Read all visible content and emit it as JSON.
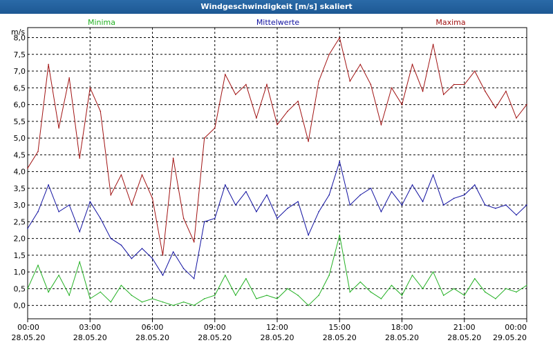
{
  "window": {
    "title": "Windgeschwindigkeit [m/s] skaliert"
  },
  "colors": {
    "min": "#22b022",
    "mean": "#1010a0",
    "max": "#a01010",
    "grid": "#000000",
    "frame": "#3b6ea5"
  },
  "chart_data": {
    "type": "line",
    "title": "Windgeschwindigkeit [m/s] skaliert",
    "ylabel": "m/s",
    "ylim": [
      -0.4,
      8.3
    ],
    "yticks": [
      0,
      0.5,
      1,
      1.5,
      2,
      2.5,
      3,
      3.5,
      4,
      4.5,
      5,
      5.5,
      6,
      6.5,
      7,
      7.5,
      8
    ],
    "ytick_labels": [
      "0,0",
      "0,5",
      "1,0",
      "1,5",
      "2,0",
      "2,5",
      "3,0",
      "3,5",
      "4,0",
      "4,5",
      "5,0",
      "5,5",
      "6,0",
      "6,5",
      "7,0",
      "7,5",
      "8,0"
    ],
    "xlim": [
      0,
      24
    ],
    "xticks": [
      {
        "h": 0,
        "time": "00:00",
        "date": "28.05.20"
      },
      {
        "h": 3,
        "time": "03:00",
        "date": "28.05.20"
      },
      {
        "h": 6,
        "time": "06:00",
        "date": "28.05.20"
      },
      {
        "h": 9,
        "time": "09:00",
        "date": "28.05.20"
      },
      {
        "h": 12,
        "time": "12:00",
        "date": "28.05.20"
      },
      {
        "h": 15,
        "time": "15:00",
        "date": "28.05.20"
      },
      {
        "h": 18,
        "time": "18:00",
        "date": "28.05.20"
      },
      {
        "h": 21,
        "time": "21:00",
        "date": "28.05.20"
      },
      {
        "h": 24,
        "time": "00:00",
        "date": "29.05.20"
      }
    ],
    "legend": [
      "Minima",
      "Mittelwerte",
      "Maxima"
    ],
    "series": [
      {
        "name": "Maxima",
        "hours": [
          0,
          0.5,
          1,
          1.5,
          2,
          2.5,
          3,
          3.5,
          4,
          4.5,
          5,
          5.5,
          6,
          6.5,
          7,
          7.5,
          8,
          8.5,
          9,
          9.5,
          10,
          10.5,
          11,
          11.5,
          12,
          12.5,
          13,
          13.5,
          14,
          14.5,
          15,
          15.5,
          16,
          16.5,
          17,
          17.5,
          18,
          18.5,
          19,
          19.5,
          20,
          20.5,
          21,
          21.5,
          22,
          22.5,
          23,
          23.5,
          24
        ],
        "values": [
          4.1,
          4.6,
          7.2,
          5.3,
          6.8,
          4.4,
          6.5,
          5.8,
          3.3,
          3.9,
          3.0,
          3.9,
          3.2,
          1.5,
          4.4,
          2.6,
          1.9,
          5.0,
          5.3,
          6.9,
          6.3,
          6.6,
          5.6,
          6.6,
          5.4,
          5.8,
          6.1,
          4.9,
          6.7,
          7.5,
          8.0,
          6.7,
          7.2,
          6.6,
          5.4,
          6.5,
          6.0,
          7.2,
          6.4,
          7.8,
          6.3,
          6.6,
          6.6,
          7.0,
          6.4,
          5.9,
          6.4,
          5.6,
          6.0
        ]
      },
      {
        "name": "Mittelwerte",
        "hours": [
          0,
          0.5,
          1,
          1.5,
          2,
          2.5,
          3,
          3.5,
          4,
          4.5,
          5,
          5.5,
          6,
          6.5,
          7,
          7.5,
          8,
          8.5,
          9,
          9.5,
          10,
          10.5,
          11,
          11.5,
          12,
          12.5,
          13,
          13.5,
          14,
          14.5,
          15,
          15.5,
          16,
          16.5,
          17,
          17.5,
          18,
          18.5,
          19,
          19.5,
          20,
          20.5,
          21,
          21.5,
          22,
          22.5,
          23,
          23.5,
          24
        ],
        "values": [
          2.3,
          2.8,
          3.6,
          2.8,
          3.0,
          2.2,
          3.1,
          2.6,
          2.0,
          1.8,
          1.4,
          1.7,
          1.4,
          0.9,
          1.6,
          1.1,
          0.8,
          2.5,
          2.6,
          3.6,
          3.0,
          3.4,
          2.8,
          3.3,
          2.6,
          2.9,
          3.1,
          2.1,
          2.8,
          3.3,
          4.3,
          3.0,
          3.3,
          3.5,
          2.8,
          3.4,
          3.0,
          3.6,
          3.1,
          3.9,
          3.0,
          3.2,
          3.3,
          3.6,
          3.0,
          2.9,
          3.0,
          2.7,
          3.0
        ]
      },
      {
        "name": "Minima",
        "hours": [
          0,
          0.5,
          1,
          1.5,
          2,
          2.5,
          3,
          3.5,
          4,
          4.5,
          5,
          5.5,
          6,
          6.5,
          7,
          7.5,
          8,
          8.5,
          9,
          9.5,
          10,
          10.5,
          11,
          11.5,
          12,
          12.5,
          13,
          13.5,
          14,
          14.5,
          15,
          15.5,
          16,
          16.5,
          17,
          17.5,
          18,
          18.5,
          19,
          19.5,
          20,
          20.5,
          21,
          21.5,
          22,
          22.5,
          23,
          23.5,
          24
        ],
        "values": [
          0.5,
          1.2,
          0.4,
          0.9,
          0.3,
          1.3,
          0.2,
          0.4,
          0.1,
          0.6,
          0.3,
          0.1,
          0.2,
          0.1,
          0.0,
          0.1,
          0.0,
          0.2,
          0.3,
          0.9,
          0.3,
          0.8,
          0.2,
          0.3,
          0.2,
          0.5,
          0.3,
          0.0,
          0.3,
          0.9,
          2.1,
          0.4,
          0.7,
          0.4,
          0.2,
          0.6,
          0.3,
          0.9,
          0.5,
          1.0,
          0.3,
          0.5,
          0.3,
          0.8,
          0.4,
          0.2,
          0.5,
          0.4,
          0.6
        ]
      }
    ]
  }
}
